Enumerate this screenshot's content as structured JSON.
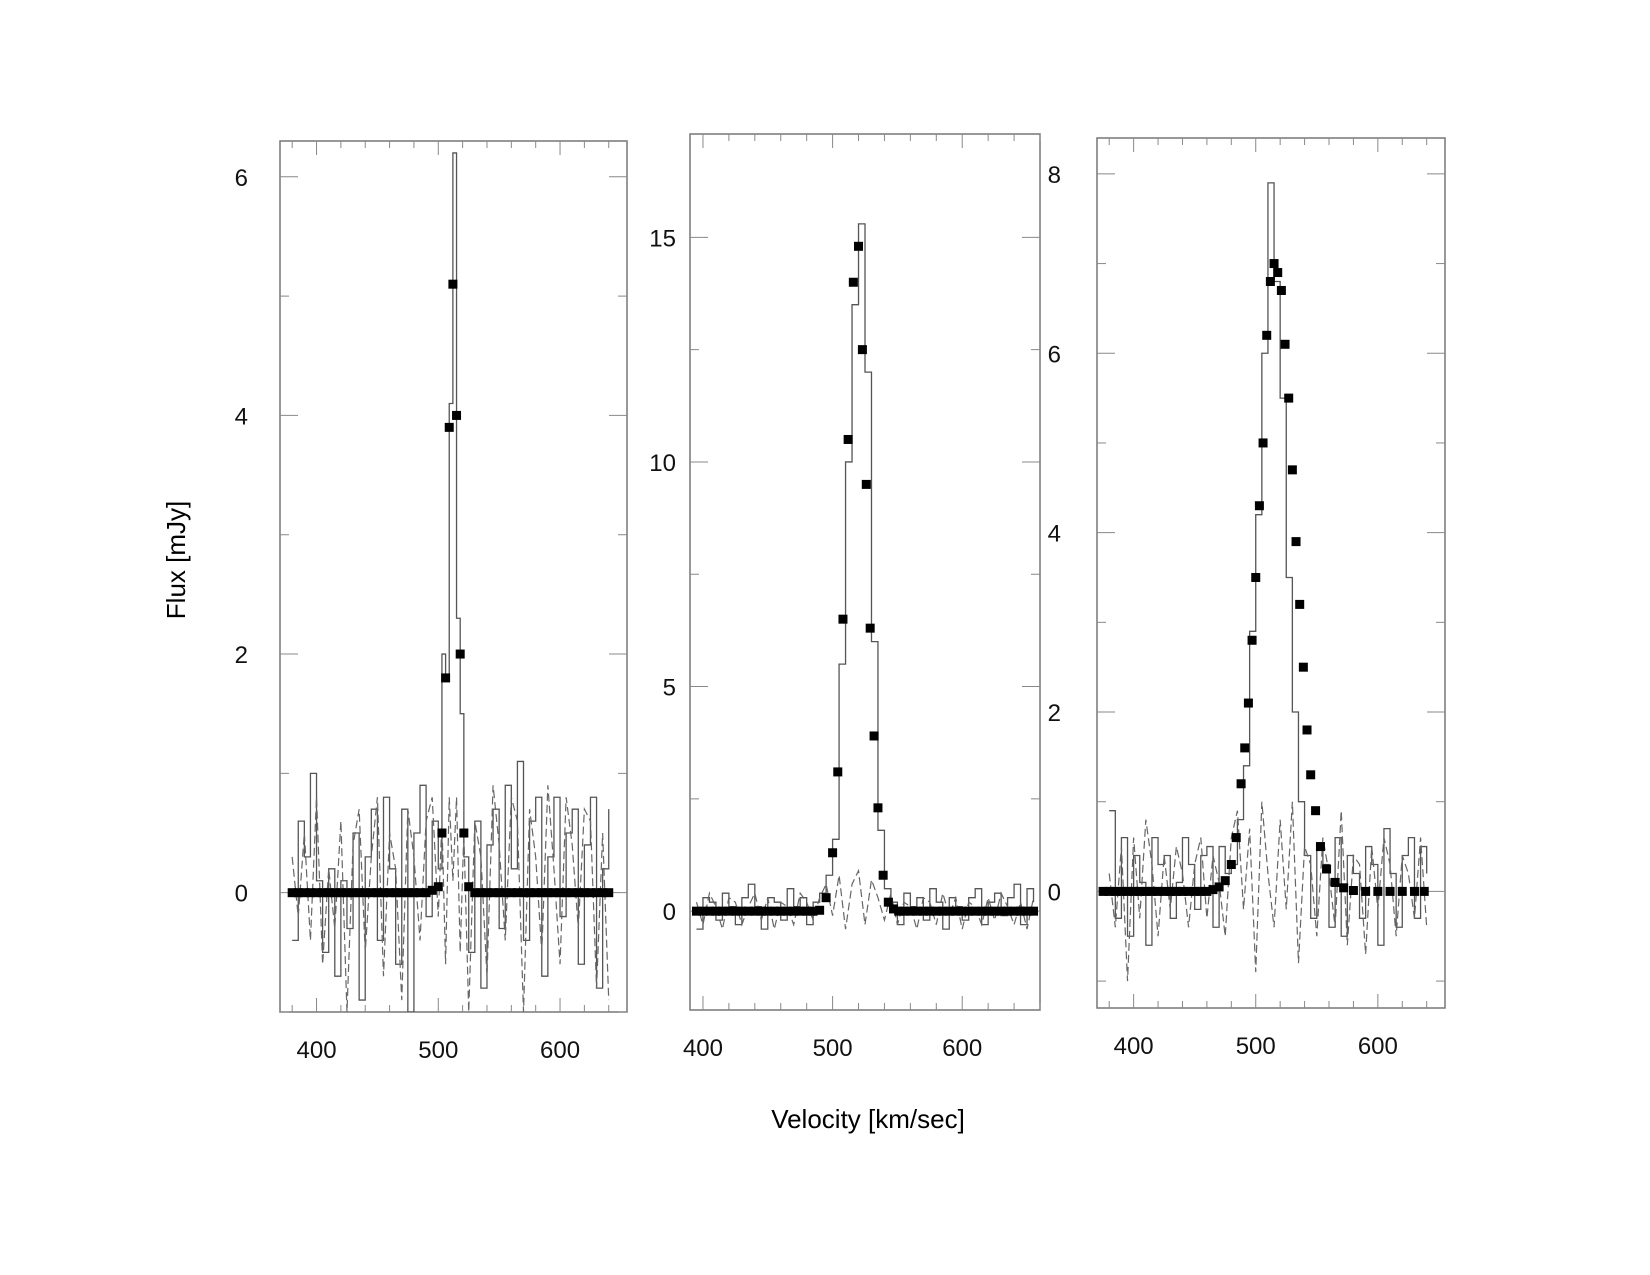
{
  "figure": {
    "ylabel": "Flux [mJy]",
    "xlabel": "Velocity [km/sec]"
  },
  "chart_data": [
    {
      "type": "line",
      "xlim": [
        370,
        655
      ],
      "ylim": [
        -1.0,
        6.3
      ],
      "x_ticks": [
        400,
        500,
        600
      ],
      "y_ticks": [
        0,
        2,
        4,
        6
      ],
      "y_axis_side": "left",
      "series": [
        {
          "style": "solid-histogram",
          "x": [
            380,
            385,
            390,
            395,
            400,
            405,
            410,
            415,
            420,
            425,
            430,
            435,
            440,
            445,
            450,
            455,
            460,
            465,
            470,
            475,
            480,
            485,
            490,
            495,
            500,
            503,
            506,
            509,
            512,
            515,
            518,
            521,
            525,
            530,
            535,
            540,
            545,
            550,
            555,
            560,
            565,
            570,
            575,
            580,
            585,
            590,
            595,
            600,
            605,
            610,
            615,
            620,
            625,
            630,
            635,
            640
          ],
          "y": [
            -0.4,
            0.6,
            0.3,
            1.0,
            0.1,
            -0.5,
            0.2,
            -0.7,
            0.1,
            -0.3,
            0.5,
            -0.9,
            0.3,
            0.7,
            -0.4,
            0.8,
            0.2,
            -0.6,
            0.7,
            -1.0,
            0.5,
            0.9,
            -0.2,
            0.6,
            0.2,
            2.0,
            1.8,
            4.1,
            6.2,
            2.3,
            1.5,
            0.3,
            -0.5,
            0.6,
            -0.8,
            0.4,
            0.7,
            -0.3,
            0.9,
            0.2,
            1.1,
            -0.4,
            0.6,
            0.8,
            -0.7,
            0.3,
            0.8,
            -0.2,
            0.5,
            0.7,
            -0.6,
            0.4,
            0.8,
            -0.8,
            0.2,
            0.7
          ]
        },
        {
          "style": "dashed",
          "x": [
            380,
            385,
            390,
            395,
            400,
            405,
            410,
            415,
            420,
            425,
            430,
            435,
            440,
            445,
            450,
            455,
            460,
            465,
            470,
            475,
            480,
            485,
            490,
            495,
            500,
            503,
            506,
            509,
            512,
            515,
            518,
            521,
            525,
            530,
            535,
            540,
            545,
            550,
            555,
            560,
            565,
            570,
            575,
            580,
            585,
            590,
            595,
            600,
            605,
            610,
            615,
            620,
            625,
            630,
            635,
            640
          ],
          "y": [
            0.3,
            -0.2,
            0.5,
            -0.4,
            0.8,
            -0.6,
            0.2,
            -0.3,
            0.6,
            -1.0,
            0.4,
            0.7,
            -0.5,
            0.3,
            0.8,
            -0.7,
            0.5,
            0.2,
            -0.9,
            0.7,
            0.3,
            -0.4,
            0.6,
            0.8,
            -0.2,
            0.6,
            -0.6,
            0.8,
            0.1,
            0.8,
            -0.5,
            0.5,
            -1.0,
            0.6,
            0.3,
            -0.7,
            0.9,
            0.4,
            -0.4,
            0.8,
            0.6,
            -1.0,
            0.7,
            0.3,
            -0.5,
            0.9,
            0.2,
            -0.6,
            0.8,
            0.4,
            -0.3,
            0.7,
            0.6,
            -0.8,
            0.5,
            -0.9
          ]
        },
        {
          "style": "markers",
          "x": [
            380,
            385,
            390,
            395,
            400,
            405,
            410,
            415,
            420,
            425,
            430,
            435,
            440,
            445,
            450,
            455,
            460,
            465,
            470,
            475,
            480,
            485,
            490,
            495,
            500,
            503,
            506,
            509,
            512,
            515,
            518,
            521,
            525,
            530,
            535,
            540,
            545,
            550,
            555,
            560,
            565,
            570,
            575,
            580,
            585,
            590,
            595,
            600,
            605,
            610,
            615,
            620,
            625,
            630,
            635,
            640
          ],
          "y": [
            0,
            0,
            0,
            0,
            0,
            0,
            0,
            0,
            0,
            0,
            0,
            0,
            0,
            0,
            0,
            0,
            0,
            0,
            0,
            0,
            0,
            0,
            0,
            0.02,
            0.05,
            0.5,
            1.8,
            3.9,
            5.1,
            4.0,
            2.0,
            0.5,
            0.05,
            0,
            0,
            0,
            0,
            0,
            0,
            0,
            0,
            0,
            0,
            0,
            0,
            0,
            0,
            0,
            0,
            0,
            0,
            0,
            0,
            0,
            0,
            0
          ]
        }
      ]
    },
    {
      "type": "line",
      "xlim": [
        390,
        660
      ],
      "ylim": [
        -2.2,
        17.3
      ],
      "x_ticks": [
        400,
        500,
        600
      ],
      "y_ticks": [
        0,
        5,
        10,
        15
      ],
      "y_axis_side": "left-outside",
      "series": [
        {
          "style": "solid-histogram",
          "x": [
            395,
            400,
            405,
            410,
            415,
            420,
            425,
            430,
            435,
            440,
            445,
            450,
            455,
            460,
            465,
            470,
            475,
            480,
            485,
            490,
            495,
            500,
            505,
            510,
            515,
            520,
            525,
            530,
            535,
            540,
            545,
            550,
            555,
            560,
            565,
            570,
            575,
            580,
            585,
            590,
            595,
            600,
            605,
            610,
            615,
            620,
            625,
            630,
            635,
            640,
            645,
            650,
            655
          ],
          "y": [
            -0.4,
            0.3,
            0.2,
            -0.2,
            0.4,
            0.1,
            -0.3,
            0.3,
            0.6,
            0.1,
            -0.4,
            0.3,
            0.2,
            -0.2,
            0.5,
            0.1,
            0.3,
            -0.3,
            0.2,
            0.4,
            0.8,
            1.6,
            5.5,
            10.0,
            13.5,
            15.3,
            12.0,
            6.0,
            1.8,
            0.5,
            0.2,
            -0.3,
            0.4,
            0.1,
            0.3,
            -0.2,
            0.5,
            0.2,
            -0.4,
            0.3,
            0.1,
            -0.2,
            0.3,
            0.5,
            -0.3,
            0.2,
            0.4,
            -0.1,
            0.3,
            0.6,
            -0.3,
            0.5,
            0.2
          ]
        },
        {
          "style": "dashed",
          "x": [
            395,
            400,
            405,
            410,
            415,
            420,
            425,
            430,
            435,
            440,
            445,
            450,
            455,
            460,
            465,
            470,
            475,
            480,
            485,
            490,
            495,
            500,
            505,
            510,
            515,
            520,
            525,
            530,
            535,
            540,
            545,
            550,
            555,
            560,
            565,
            570,
            575,
            580,
            585,
            590,
            595,
            600,
            605,
            610,
            615,
            620,
            625,
            630,
            635,
            640,
            645,
            650,
            655
          ],
          "y": [
            0.2,
            -0.3,
            0.4,
            0.1,
            -0.4,
            0.3,
            0.2,
            -0.3,
            0.1,
            0.4,
            -0.2,
            0.3,
            -0.4,
            0.2,
            0.1,
            -0.3,
            0.4,
            0.2,
            -0.2,
            0.3,
            0.6,
            -0.1,
            0.8,
            -0.4,
            0.6,
            0.9,
            -0.3,
            0.7,
            0.3,
            -0.2,
            0.4,
            -0.3,
            0.2,
            0.1,
            -0.4,
            0.3,
            0.2,
            -0.3,
            0.4,
            -0.1,
            0.3,
            -0.4,
            0.2,
            0.1,
            -0.3,
            0.3,
            -0.2,
            0.4,
            0.1,
            -0.3,
            0.2,
            -0.4,
            0.3
          ]
        },
        {
          "style": "markers",
          "x": [
            395,
            400,
            405,
            410,
            415,
            420,
            425,
            430,
            435,
            440,
            445,
            450,
            455,
            460,
            465,
            470,
            475,
            480,
            485,
            490,
            495,
            500,
            504,
            508,
            512,
            516,
            520,
            523,
            526,
            529,
            532,
            535,
            539,
            543,
            547,
            551,
            555,
            560,
            565,
            570,
            575,
            580,
            585,
            590,
            595,
            600,
            605,
            610,
            615,
            620,
            625,
            630,
            635,
            640,
            645,
            650,
            655
          ],
          "y": [
            0,
            0,
            0,
            0,
            0,
            0,
            0,
            0,
            0,
            0,
            0,
            0,
            0,
            0,
            0,
            0,
            0,
            0,
            0,
            0.02,
            0.3,
            1.3,
            3.1,
            6.5,
            10.5,
            14.0,
            14.8,
            12.5,
            9.5,
            6.3,
            3.9,
            2.3,
            0.8,
            0.2,
            0.05,
            0,
            0,
            0,
            0,
            0,
            0,
            0,
            0,
            0,
            0,
            0,
            0,
            0,
            0,
            0,
            0,
            0,
            0,
            0,
            0,
            0,
            0
          ]
        }
      ]
    },
    {
      "type": "line",
      "xlim": [
        370,
        655
      ],
      "ylim": [
        -1.3,
        8.4
      ],
      "x_ticks": [
        400,
        500,
        600
      ],
      "y_ticks": [
        0,
        2,
        4,
        6,
        8
      ],
      "y_axis_side": "left-outside",
      "series": [
        {
          "style": "solid-histogram",
          "x": [
            380,
            385,
            390,
            395,
            400,
            405,
            410,
            415,
            420,
            425,
            430,
            435,
            440,
            445,
            450,
            455,
            460,
            465,
            470,
            475,
            480,
            485,
            490,
            495,
            500,
            505,
            510,
            515,
            520,
            525,
            530,
            535,
            540,
            545,
            550,
            555,
            560,
            565,
            570,
            575,
            580,
            585,
            590,
            595,
            600,
            605,
            610,
            615,
            620,
            625,
            630,
            635,
            640
          ],
          "y": [
            0.9,
            -0.3,
            0.6,
            -0.5,
            0.4,
            0.1,
            -0.6,
            0.6,
            0.3,
            0.4,
            -0.3,
            0.1,
            0.6,
            0.3,
            -0.2,
            0.4,
            0.5,
            -0.4,
            0.5,
            0.2,
            0.3,
            0.8,
            1.4,
            2.9,
            4.2,
            6.0,
            7.9,
            6.8,
            5.5,
            3.5,
            2.0,
            1.0,
            0.4,
            -0.3,
            0.5,
            0.3,
            -0.4,
            0.6,
            -0.5,
            0.4,
            0.2,
            -0.3,
            0.5,
            0.3,
            -0.6,
            0.7,
            0.2,
            -0.4,
            0.4,
            0.6,
            -0.3,
            0.5,
            0.2
          ]
        },
        {
          "style": "dashed",
          "x": [
            380,
            385,
            390,
            395,
            400,
            405,
            410,
            415,
            420,
            425,
            430,
            435,
            440,
            445,
            450,
            455,
            460,
            465,
            470,
            475,
            480,
            485,
            490,
            495,
            500,
            505,
            510,
            515,
            520,
            525,
            530,
            535,
            540,
            545,
            550,
            555,
            560,
            565,
            570,
            575,
            580,
            585,
            590,
            595,
            600,
            605,
            610,
            615,
            620,
            625,
            630,
            635,
            640
          ],
          "y": [
            0.2,
            -0.4,
            0.5,
            -1.0,
            0.6,
            -0.3,
            0.8,
            0.3,
            -0.5,
            0.4,
            -0.2,
            0.5,
            0.2,
            -0.4,
            0.3,
            0.6,
            -0.3,
            0.4,
            0.1,
            -0.5,
            0.6,
            0.9,
            -0.2,
            0.7,
            -0.9,
            1.0,
            0.2,
            -0.4,
            0.8,
            -0.2,
            1.0,
            -0.8,
            0.5,
            0.3,
            -0.5,
            0.6,
            0.2,
            -0.4,
            0.9,
            -0.6,
            0.4,
            0.3,
            -0.7,
            0.5,
            -0.2,
            0.6,
            0.3,
            -0.5,
            0.4,
            0.2,
            -0.3,
            0.6,
            -0.4
          ]
        },
        {
          "style": "markers",
          "x": [
            375,
            380,
            385,
            390,
            395,
            400,
            405,
            410,
            415,
            420,
            425,
            430,
            435,
            440,
            445,
            450,
            455,
            460,
            465,
            470,
            475,
            480,
            484,
            488,
            491,
            494,
            497,
            500,
            503,
            506,
            509,
            512,
            515,
            518,
            521,
            524,
            527,
            530,
            533,
            536,
            539,
            542,
            545,
            549,
            553,
            558,
            565,
            572,
            580,
            590,
            600,
            610,
            620,
            630,
            638
          ],
          "y": [
            0,
            0,
            0,
            0,
            0,
            0,
            0,
            0,
            0,
            0,
            0,
            0,
            0,
            0,
            0,
            0,
            0,
            0,
            0.02,
            0.05,
            0.12,
            0.3,
            0.6,
            1.2,
            1.6,
            2.1,
            2.8,
            3.5,
            4.3,
            5.0,
            6.2,
            6.8,
            7.0,
            6.9,
            6.7,
            6.1,
            5.5,
            4.7,
            3.9,
            3.2,
            2.5,
            1.8,
            1.3,
            0.9,
            0.5,
            0.25,
            0.1,
            0.04,
            0.01,
            0,
            0,
            0,
            0,
            0,
            0
          ]
        }
      ]
    }
  ]
}
